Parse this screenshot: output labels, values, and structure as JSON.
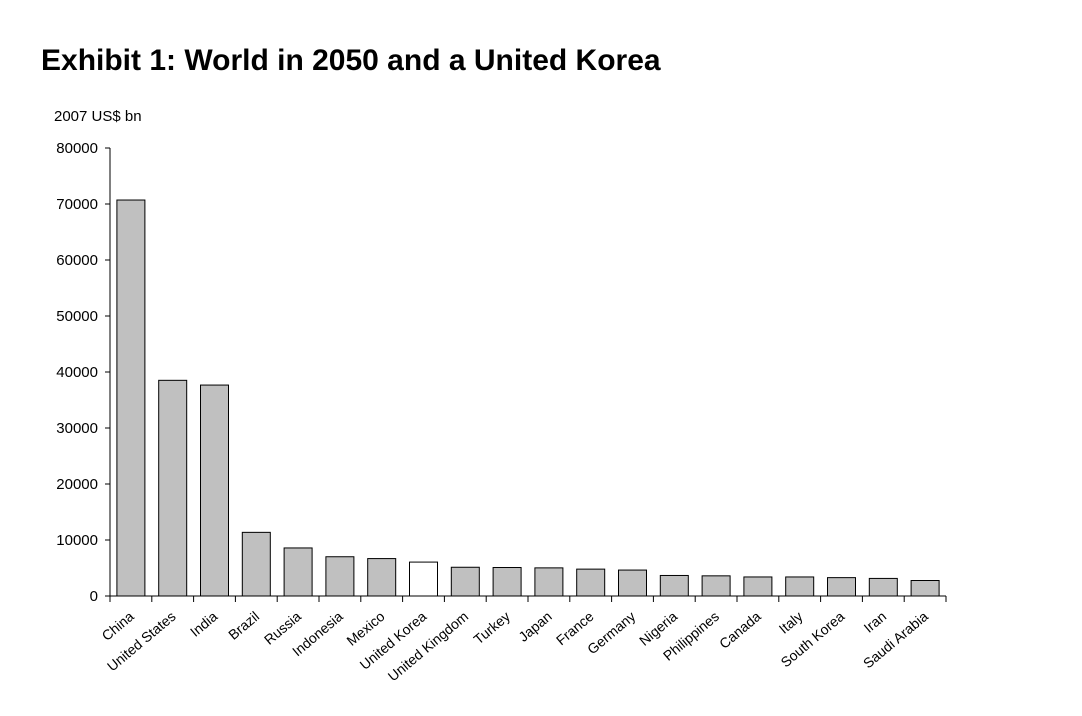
{
  "title": "Exhibit 1: World in 2050 and a United Korea",
  "chart_data": {
    "type": "bar",
    "ylabel": "2007 US$ bn",
    "xlabel": "",
    "ylim": [
      0,
      80000
    ],
    "yticks": [
      0,
      10000,
      20000,
      30000,
      40000,
      50000,
      60000,
      70000,
      80000
    ],
    "grid": false,
    "legend": "none",
    "categories": [
      "China",
      "United States",
      "India",
      "Brazil",
      "Russia",
      "Indonesia",
      "Mexico",
      "United Korea",
      "United Kingdom",
      "Turkey",
      "Japan",
      "France",
      "Germany",
      "Nigeria",
      "Philippines",
      "Canada",
      "Italy",
      "South Korea",
      "Iran",
      "Saudi Arabia"
    ],
    "values": [
      70710,
      38514,
      37668,
      11366,
      8580,
      7010,
      6682,
      6056,
      5133,
      5087,
      5023,
      4800,
      4632,
      3666,
      3600,
      3400,
      3400,
      3279,
      3140,
      2767
    ],
    "bar_color": "#c0c0c0",
    "highlight_category": "United Korea",
    "highlight_color": "#ffffff"
  }
}
